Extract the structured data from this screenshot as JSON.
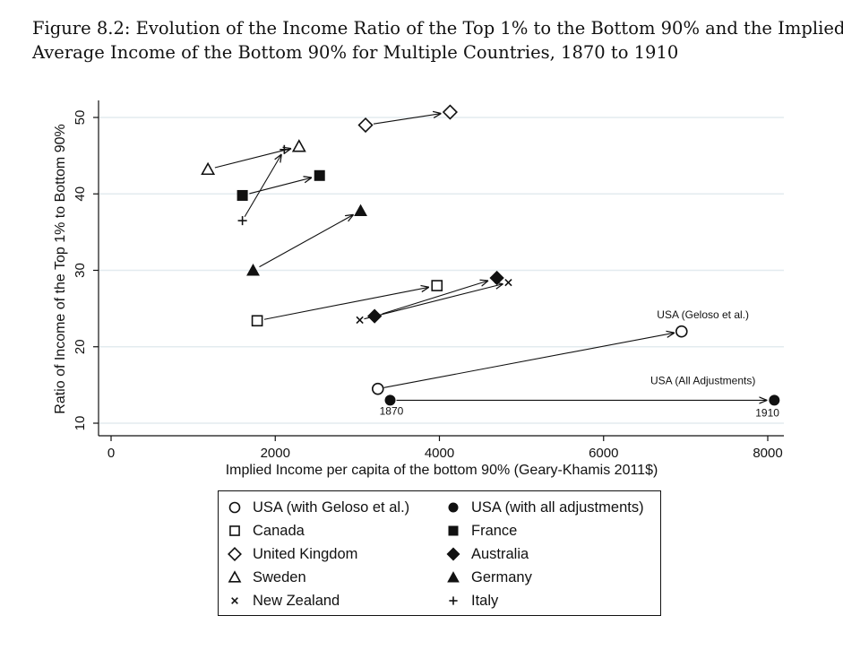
{
  "figure": {
    "title_line1": "Figure 8.2: Evolution of the Income Ratio of the Top 1% to the Bottom 90% and the Implied",
    "title_line2": "Average Income of the Bottom 90% for Multiple Countries, 1870 to 1910"
  },
  "chart_data": {
    "type": "scatter",
    "xlabel": "Implied Income per capita of the bottom 90% (Geary-Khamis 2011$)",
    "ylabel": "Ratio of Income of the Top 1% to Bottom 90%",
    "xlim": [
      0,
      8000
    ],
    "ylim": [
      10,
      50
    ],
    "xticks": [
      0,
      2000,
      4000,
      6000,
      8000
    ],
    "yticks": [
      10,
      20,
      30,
      40,
      50
    ],
    "grid": "horizontal",
    "legend_position": "bottom",
    "series": [
      {
        "name": "USA (with Geloso et al.)",
        "marker": "circle-open",
        "start": {
          "x": 3250,
          "y": 14.5
        },
        "end": {
          "x": 6950,
          "y": 22
        }
      },
      {
        "name": "USA (with all adjustments)",
        "marker": "circle-filled",
        "start": {
          "x": 3400,
          "y": 13
        },
        "end": {
          "x": 8080,
          "y": 13
        }
      },
      {
        "name": "Canada",
        "marker": "square-open",
        "start": {
          "x": 1780,
          "y": 23.4
        },
        "end": {
          "x": 3970,
          "y": 28
        }
      },
      {
        "name": "France",
        "marker": "square-filled",
        "start": {
          "x": 1600,
          "y": 39.8
        },
        "end": {
          "x": 2540,
          "y": 42.4
        }
      },
      {
        "name": "United Kingdom",
        "marker": "diamond-open",
        "start": {
          "x": 3100,
          "y": 49
        },
        "end": {
          "x": 4130,
          "y": 50.7
        }
      },
      {
        "name": "Australia",
        "marker": "diamond-filled",
        "start": {
          "x": 3210,
          "y": 24
        },
        "end": {
          "x": 4700,
          "y": 29
        }
      },
      {
        "name": "Sweden",
        "marker": "triangle-open",
        "start": {
          "x": 1180,
          "y": 43.2
        },
        "end": {
          "x": 2290,
          "y": 46.2
        }
      },
      {
        "name": "Germany",
        "marker": "triangle-filled",
        "start": {
          "x": 1730,
          "y": 30
        },
        "end": {
          "x": 3040,
          "y": 37.8
        }
      },
      {
        "name": "New Zealand",
        "marker": "x",
        "start": {
          "x": 3030,
          "y": 23.5
        },
        "end": {
          "x": 4840,
          "y": 28.4
        }
      },
      {
        "name": "Italy",
        "marker": "plus",
        "start": {
          "x": 1600,
          "y": 36.5
        },
        "end": {
          "x": 2110,
          "y": 45.8
        }
      }
    ],
    "annotations": [
      {
        "text": "USA (Geloso et al.)",
        "x": 6650,
        "y": 23.7
      },
      {
        "text": "USA (All Adjustments)",
        "x": 6570,
        "y": 15.1
      },
      {
        "text": "1870",
        "x": 3270,
        "y": 11.1
      },
      {
        "text": "1910",
        "x": 7850,
        "y": 10.9
      }
    ]
  },
  "legend": {
    "items": [
      {
        "label": "USA (with Geloso et al.)",
        "marker": "circle-open"
      },
      {
        "label": "USA (with all adjustments)",
        "marker": "circle-filled"
      },
      {
        "label": "Canada",
        "marker": "square-open"
      },
      {
        "label": "France",
        "marker": "square-filled"
      },
      {
        "label": "United Kingdom",
        "marker": "diamond-open"
      },
      {
        "label": "Australia",
        "marker": "diamond-filled"
      },
      {
        "label": "Sweden",
        "marker": "triangle-open"
      },
      {
        "label": "Germany",
        "marker": "triangle-filled"
      },
      {
        "label": "New Zealand",
        "marker": "x"
      },
      {
        "label": "Italy",
        "marker": "plus"
      }
    ]
  }
}
